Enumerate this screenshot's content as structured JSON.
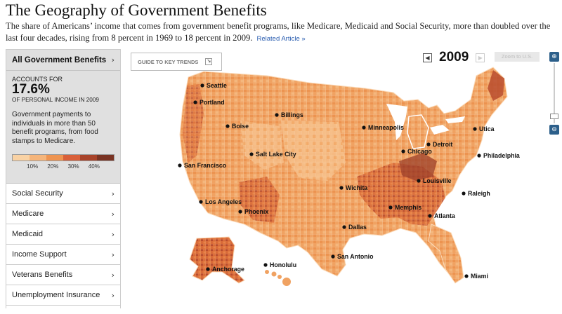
{
  "header": {
    "title": "The Geography of Government Benefits",
    "subtitle": "The share of Americans’ income that comes from government benefit programs, like Medicare, Medicaid and Social Security, more than doubled over the last four decades, rising from 8 percent in 1969 to 18 percent in 2009.",
    "related_link": "Related Article »"
  },
  "sidebar": {
    "active": {
      "label": "All Government Benefits",
      "accounts_for": "ACCOUNTS FOR",
      "percent": "17.6%",
      "percent_note": "OF PERSONAL INCOME IN 2009",
      "description": "Government payments to individuals in more than 50 benefit programs, from food stamps to Medicare."
    },
    "legend": {
      "colors": [
        "#f9d2a4",
        "#f5b57b",
        "#ee9451",
        "#d9603a",
        "#a8442b",
        "#7a3424"
      ],
      "labels": [
        "10%",
        "20%",
        "30%",
        "40%"
      ]
    },
    "items": [
      {
        "label": "Social Security"
      },
      {
        "label": "Medicare"
      },
      {
        "label": "Medicaid"
      },
      {
        "label": "Income Support"
      },
      {
        "label": "Veterans Benefits"
      },
      {
        "label": "Unemployment Insurance"
      }
    ]
  },
  "controls": {
    "guide_label": "GUIDE TO KEY TRENDS",
    "year": "2009",
    "zoom_to_us": "Zoom to U.S.",
    "zoom_in": "+",
    "zoom_out": "−",
    "zoom_level": 0.08
  },
  "map": {
    "colors": {
      "light": "#f7c48f",
      "mid": "#ef9a5a",
      "dark": "#d2602f",
      "darkest": "#8d3a27",
      "water": "#ffffff",
      "border": "#ffffff"
    },
    "cities": [
      {
        "name": "Seattle"
      },
      {
        "name": "Portland"
      },
      {
        "name": "Billings"
      },
      {
        "name": "Boise"
      },
      {
        "name": "Minneapolis"
      },
      {
        "name": "Utica"
      },
      {
        "name": "Detroit"
      },
      {
        "name": "Chicago"
      },
      {
        "name": "Philadelphia"
      },
      {
        "name": "Salt Lake City"
      },
      {
        "name": "San Francisco"
      },
      {
        "name": "Louisville"
      },
      {
        "name": "Wichita"
      },
      {
        "name": "Raleigh"
      },
      {
        "name": "Los Angeles"
      },
      {
        "name": "Memphis"
      },
      {
        "name": "Phoenix"
      },
      {
        "name": "Atlanta"
      },
      {
        "name": "Dallas"
      },
      {
        "name": "San Antonio"
      },
      {
        "name": "Anchorage"
      },
      {
        "name": "Honolulu"
      },
      {
        "name": "Miami"
      }
    ]
  }
}
